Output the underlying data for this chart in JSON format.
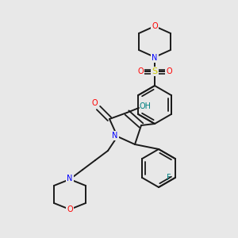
{
  "bg_color": "#e8e8e8",
  "bond_color": "#1a1a1a",
  "colors": {
    "O": "#ff0000",
    "N": "#0000ff",
    "S": "#cccc00",
    "F": "#008080",
    "H": "#008080"
  },
  "figsize": [
    3.0,
    3.0
  ],
  "dpi": 100
}
